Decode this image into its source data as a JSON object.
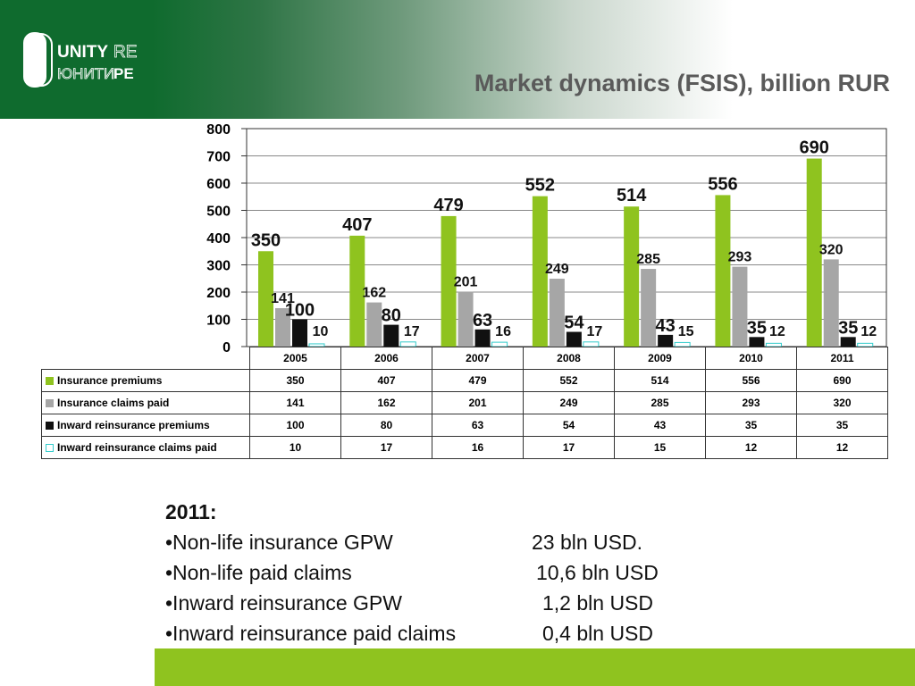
{
  "header": {
    "logo_text": "UNITY RE / ЮНИТИ РЕ",
    "title": "Market dynamics (FSIS), billion RUR"
  },
  "chart_data": {
    "type": "bar",
    "title": "Market dynamics (FSIS), billion RUR",
    "categories": [
      "2005",
      "2006",
      "2007",
      "2008",
      "2009",
      "2010",
      "2011"
    ],
    "ylim": [
      0,
      800
    ],
    "yticks": [
      "0",
      "100",
      "200",
      "300",
      "400",
      "500",
      "600",
      "700",
      "800"
    ],
    "grid": true,
    "legend": "table-bottom",
    "series": [
      {
        "name": "Insurance  premiums",
        "color": "#8fc31f",
        "values": [
          350,
          407,
          479,
          552,
          514,
          556,
          690
        ]
      },
      {
        "name": "Insurance  claims paid",
        "color": "#a6a6a6",
        "values": [
          141,
          162,
          201,
          249,
          285,
          293,
          320
        ]
      },
      {
        "name": "Inward reinsurance  premiums",
        "color": "#111111",
        "values": [
          100,
          80,
          63,
          54,
          43,
          35,
          35
        ]
      },
      {
        "name": "Inward reinsurance  claims paid",
        "color": "#ffffff",
        "stroke": "#33cccc",
        "values": [
          10,
          17,
          16,
          17,
          15,
          12,
          12
        ]
      }
    ]
  },
  "notes": {
    "heading": "2011:",
    "items": [
      {
        "label": "•Non-life insurance GPW",
        "value": "23 bln USD."
      },
      {
        "label": "•Non-life paid claims",
        "value": "10,6 bln USD"
      },
      {
        "label": "•Inward reinsurance GPW",
        "value": "1,2 bln USD"
      },
      {
        "label": "•Inward reinsurance paid claims",
        "value": "0,4 bln USD"
      }
    ]
  }
}
